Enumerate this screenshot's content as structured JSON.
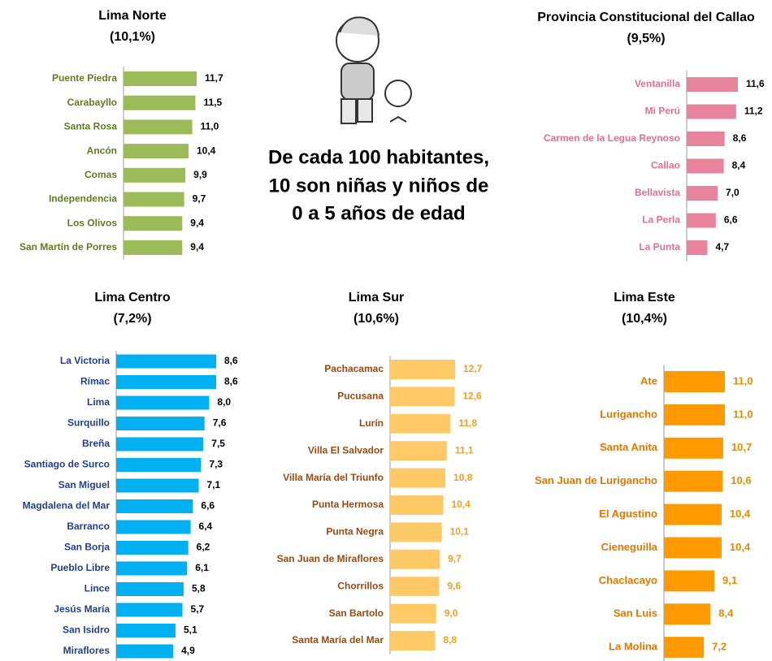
{
  "headline": [
    "De cada 100 habitantes,",
    "10  son niñas y niños de",
    "0 a 5 años de edad"
  ],
  "chart_data": [
    {
      "type": "bar",
      "orientation": "horizontal",
      "title": "Lima Norte",
      "subtitle": "(10,1%)",
      "color": "#9bbb59",
      "categories": [
        "Puente Piedra",
        "Carabayllo",
        "Santa Rosa",
        "Ancón",
        "Comas",
        "Independencia",
        "Los Olivos",
        "San Martín de Porres"
      ],
      "values": [
        11.7,
        11.5,
        11.0,
        10.4,
        9.9,
        9.7,
        9.4,
        9.4
      ],
      "value_labels": [
        "11,7",
        "11,5",
        "11,0",
        "10,4",
        "9,9",
        "9,7",
        "9,4",
        "9,4"
      ]
    },
    {
      "type": "bar",
      "orientation": "horizontal",
      "title": "Provincia Constitucional del Callao",
      "subtitle": "(9,5%)",
      "color": "#e8839e",
      "categories": [
        "Ventanilla",
        "Mi Perú",
        "Carmen de la Legua Reynoso",
        "Callao",
        "Bellavista",
        "La Perla",
        "La Punta"
      ],
      "values": [
        11.6,
        11.2,
        8.6,
        8.4,
        7.0,
        6.6,
        4.7
      ],
      "value_labels": [
        "11,6",
        "11,2",
        "8,6",
        "8,4",
        "7,0",
        "6,6",
        "4,7"
      ]
    },
    {
      "type": "bar",
      "orientation": "horizontal",
      "title": "Lima Centro",
      "subtitle": "(7,2%)",
      "color": "#00b0f0",
      "categories": [
        "La Victoria",
        "Rímac",
        "Lima",
        "Surquillo",
        "Breña",
        "Santiago de Surco",
        "San Miguel",
        "Magdalena del Mar",
        "Barranco",
        "San Borja",
        "Pueblo Libre",
        "Lince",
        "Jesús María",
        "San Isidro",
        "Miraflores"
      ],
      "values": [
        8.6,
        8.6,
        8.0,
        7.6,
        7.5,
        7.3,
        7.1,
        6.6,
        6.4,
        6.2,
        6.1,
        5.8,
        5.7,
        5.1,
        4.9
      ],
      "value_labels": [
        "8,6",
        "8,6",
        "8,0",
        "7,6",
        "7,5",
        "7,3",
        "7,1",
        "6,6",
        "6,4",
        "6,2",
        "6,1",
        "5,8",
        "5,7",
        "5,1",
        "4,9"
      ]
    },
    {
      "type": "bar",
      "orientation": "horizontal",
      "title": "Lima Sur",
      "subtitle": "(10,6%)",
      "color": "#ffc966",
      "categories": [
        "Pachacamac",
        "Pucusana",
        "Lurín",
        "Villa El Salvador",
        "Villa María del Triunfo",
        "Punta Hermosa",
        "Punta Negra",
        "San Juan de Miraflores",
        "Chorrillos",
        "San Bartolo",
        "Santa María del Mar"
      ],
      "values": [
        12.7,
        12.6,
        11.8,
        11.1,
        10.8,
        10.4,
        10.1,
        9.7,
        9.6,
        9.0,
        8.8
      ],
      "value_labels": [
        "12,7",
        "12,6",
        "11,8",
        "11,1",
        "10,8",
        "10,4",
        "10,1",
        "9,7",
        "9,6",
        "9,0",
        "8,8"
      ]
    },
    {
      "type": "bar",
      "orientation": "horizontal",
      "title": "Lima Este",
      "subtitle": "(10,4%)",
      "color": "#ff9900",
      "categories": [
        "Ate",
        "Lurigancho",
        "Santa Anita",
        "San Juan de Lurigancho",
        "El Agustino",
        "Cieneguilla",
        "Chaclacayo",
        "San Luis",
        "La Molina"
      ],
      "values": [
        11.0,
        11.0,
        10.7,
        10.6,
        10.4,
        10.4,
        9.1,
        8.4,
        7.2
      ],
      "value_labels": [
        "11,0",
        "11,0",
        "10,7",
        "10,6",
        "10,4",
        "10,4",
        "9,1",
        "8,4",
        "7,2"
      ]
    }
  ]
}
